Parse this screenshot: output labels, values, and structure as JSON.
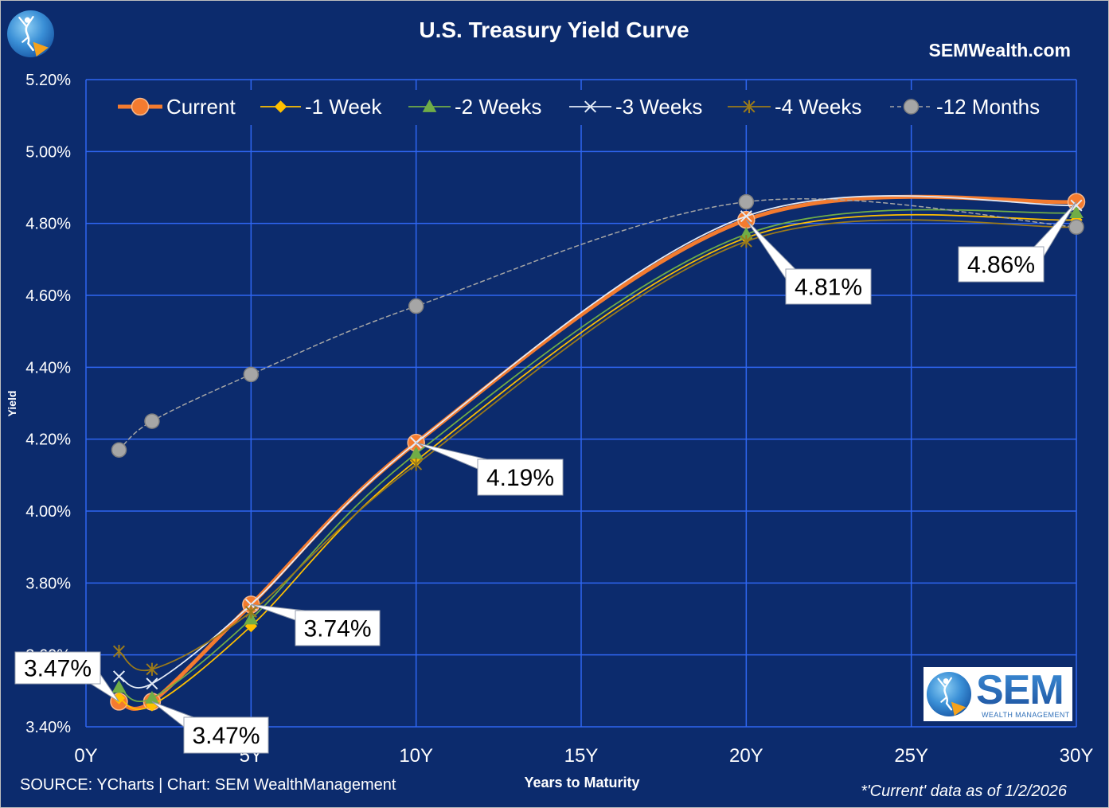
{
  "header": {
    "brand_url": "SEMWealth.com"
  },
  "chart_data": {
    "type": "line",
    "title": "U.S. Treasury Yield Curve",
    "xlabel": "Years to Maturity",
    "ylabel": "Yield",
    "x": [
      1,
      2,
      5,
      10,
      20,
      30
    ],
    "xlim": [
      0,
      30
    ],
    "ylim": [
      3.4,
      5.2
    ],
    "grid": true,
    "legend_position": "top",
    "x_ticks": [
      {
        "value": 0,
        "label": "0Y"
      },
      {
        "value": 5,
        "label": "5Y"
      },
      {
        "value": 10,
        "label": "10Y"
      },
      {
        "value": 15,
        "label": "15Y"
      },
      {
        "value": 20,
        "label": "20Y"
      },
      {
        "value": 25,
        "label": "25Y"
      },
      {
        "value": 30,
        "label": "30Y"
      }
    ],
    "y_ticks": [
      {
        "value": 5.2,
        "label": "5.20%"
      },
      {
        "value": 5.0,
        "label": "5.00%"
      },
      {
        "value": 4.8,
        "label": "4.80%"
      },
      {
        "value": 4.6,
        "label": "4.60%"
      },
      {
        "value": 4.4,
        "label": "4.40%"
      },
      {
        "value": 4.2,
        "label": "4.20%"
      },
      {
        "value": 4.0,
        "label": "4.00%"
      },
      {
        "value": 3.8,
        "label": "3.80%"
      },
      {
        "value": 3.6,
        "label": "3.60%"
      },
      {
        "value": 3.4,
        "label": "3.40%"
      }
    ],
    "series": [
      {
        "name": "Current",
        "values": [
          3.47,
          3.47,
          3.74,
          4.19,
          4.81,
          4.86
        ],
        "color": "#f47b2f"
      },
      {
        "name": "-1 Week",
        "values": [
          3.48,
          3.46,
          3.68,
          4.14,
          4.76,
          4.81
        ],
        "color": "#ffc000"
      },
      {
        "name": "-2 Weeks",
        "values": [
          3.51,
          3.48,
          3.7,
          4.16,
          4.77,
          4.83
        ],
        "color": "#70ad47"
      },
      {
        "name": "-3 Weeks",
        "values": [
          3.54,
          3.52,
          3.74,
          4.19,
          4.82,
          4.85
        ],
        "color": "#e3ebf7"
      },
      {
        "name": "-4 Weeks",
        "values": [
          3.61,
          3.56,
          3.72,
          4.13,
          4.75,
          4.79
        ],
        "color": "#9b7a1a"
      },
      {
        "name": "-12 Months",
        "values": [
          4.17,
          4.25,
          4.38,
          4.57,
          4.86,
          4.79
        ],
        "color": "#a6a6a6",
        "dashed": true
      }
    ],
    "data_labels": [
      {
        "series_index": 0,
        "x": 1,
        "text": "3.47%"
      },
      {
        "series_index": 0,
        "x": 2,
        "text": "3.47%"
      },
      {
        "series_index": 0,
        "x": 5,
        "text": "3.74%"
      },
      {
        "series_index": 0,
        "x": 10,
        "text": "4.19%"
      },
      {
        "series_index": 0,
        "x": 20,
        "text": "4.81%"
      },
      {
        "series_index": 0,
        "x": 30,
        "text": "4.86%"
      }
    ]
  },
  "footer": {
    "source": "SOURCE: YCharts | Chart: SEM WealthManagement",
    "note": "*'Current' data as of 1/2/2026"
  },
  "logo": {
    "name": "SEM",
    "tagline": "WEALTH MANAGEMENT"
  },
  "colors": {
    "background": "#0c2b6d",
    "grid": "#2f66f2",
    "label_box": "#ffffff"
  }
}
